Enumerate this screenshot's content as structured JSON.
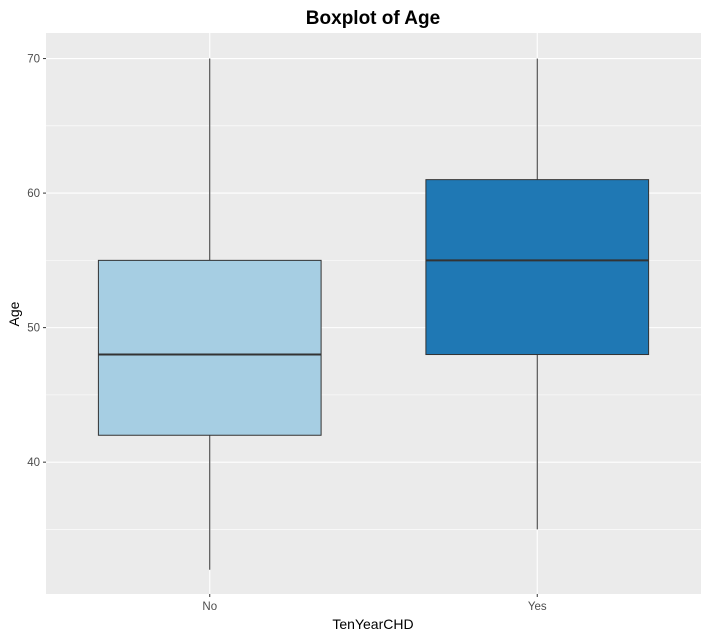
{
  "chart_data": {
    "type": "boxplot",
    "title": "Boxplot of Age",
    "xlabel": "TenYearCHD",
    "ylabel": "Age",
    "categories": [
      "No",
      "Yes"
    ],
    "boxes": [
      {
        "category": "No",
        "min": 32,
        "q1": 42,
        "median": 48,
        "q3": 55,
        "max": 70,
        "color": "#A6CEE3"
      },
      {
        "category": "Yes",
        "min": 35,
        "q1": 48,
        "median": 55,
        "q3": 61,
        "max": 70,
        "color": "#1F78B4"
      }
    ],
    "y_ticks": [
      40,
      50,
      60,
      70
    ],
    "ylim": [
      30.2,
      71.9
    ],
    "grid": true,
    "legend": "none",
    "panel_background": "#EBEBEB",
    "grid_color": "#FFFFFF"
  }
}
